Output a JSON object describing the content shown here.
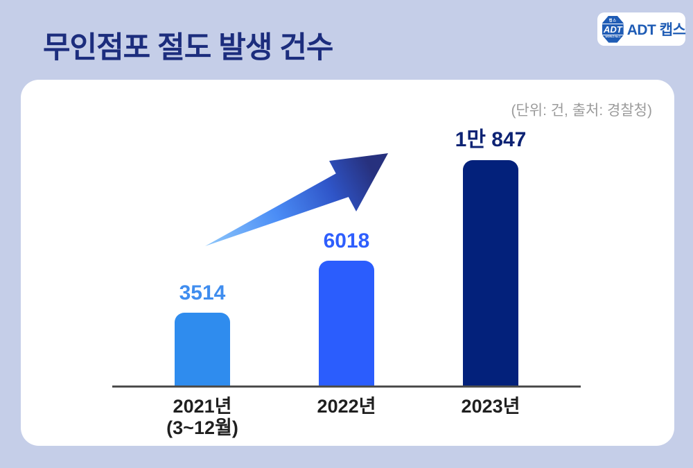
{
  "page": {
    "title": "무인점포 절도 발생 건수"
  },
  "logo": {
    "badge_top_text": "캡스",
    "badge_text": "ADT",
    "badge_bottom_text": "WORLD No.1",
    "wordmark": "ADT 캡스"
  },
  "colors": {
    "background": "#c5cee8",
    "card": "#ffffff",
    "title": "#1c2d7d",
    "axis_line": "#4d4d4d",
    "tick_label": "#1f1f1f",
    "note": "#9b9b9b",
    "logo_blue": "#1f5cb5",
    "arrow_gradient_start": "#8ec7fa",
    "arrow_gradient_end": "#27317e"
  },
  "chart_data": {
    "type": "bar",
    "title": "무인점포 절도 발생 건수",
    "unit_note": "(단위: 건, 출처: 경찰청)",
    "categories": [
      "2021년 (3~12월)",
      "2022년",
      "2023년"
    ],
    "values": [
      3514,
      6018,
      10847
    ],
    "ylim": [
      0,
      10847
    ],
    "grid": false,
    "legend": false,
    "annotation": "upward-trend-arrow between 2021 and 2023 bars",
    "bars": [
      {
        "label": "2021년",
        "sublabel": "(3~12월)",
        "value": 3514,
        "display_value": "3514",
        "bar_color": "#2f8cee",
        "value_color": "#3f8def"
      },
      {
        "label": "2022년",
        "sublabel": "",
        "value": 6018,
        "display_value": "6018",
        "bar_color": "#2b5dfd",
        "value_color": "#2e5efd"
      },
      {
        "label": "2023년",
        "sublabel": "",
        "value": 10847,
        "display_value": "1만 847",
        "bar_color": "#03217b",
        "value_color": "#0d2374"
      }
    ]
  }
}
